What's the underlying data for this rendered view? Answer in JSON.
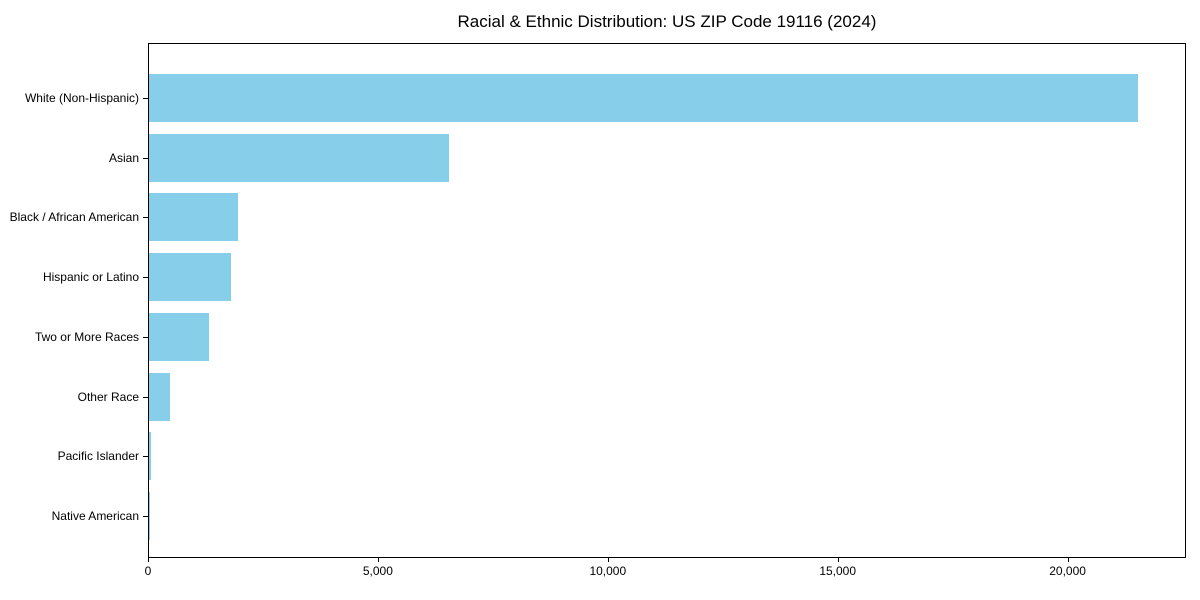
{
  "page": {
    "background": "#ffffff"
  },
  "chart_data": {
    "type": "bar",
    "orientation": "horizontal",
    "title": "Racial & Ethnic Distribution: US ZIP Code 19116 (2024)",
    "categories": [
      "White (Non-Hispanic)",
      "Asian",
      "Black / African American",
      "Hispanic or Latino",
      "Two or More Races",
      "Other Race",
      "Pacific Islander",
      "Native American"
    ],
    "values": [
      21500,
      6530,
      1940,
      1790,
      1310,
      460,
      35,
      25
    ],
    "xlabel": "",
    "ylabel": "",
    "xlim": [
      0,
      22575
    ],
    "x_ticks": [
      0,
      5000,
      10000,
      15000,
      20000
    ],
    "x_tick_labels": [
      "0",
      "5,000",
      "10,000",
      "15,000",
      "20,000"
    ],
    "bar_color": "#87CEEB",
    "text_color": "#000000",
    "grid": false,
    "legend": null
  }
}
